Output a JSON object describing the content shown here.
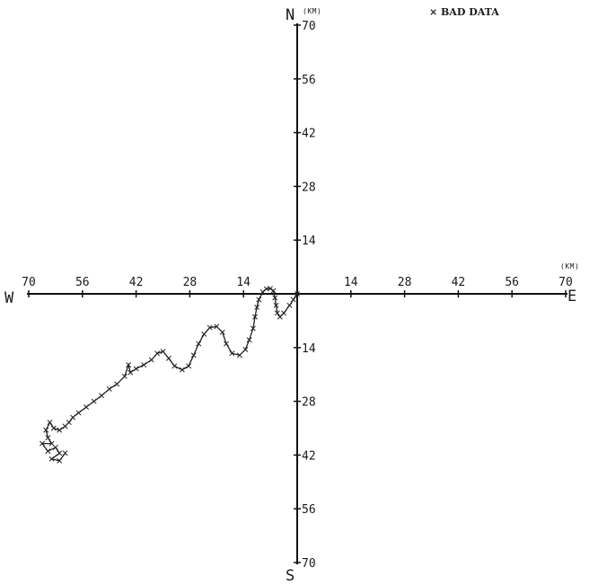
{
  "chart_data": {
    "type": "scatter",
    "title": "",
    "xlabel": "",
    "ylabel": "",
    "xlim": [
      -70,
      70
    ],
    "ylim": [
      -70,
      70
    ],
    "grid": false,
    "axes": {
      "north_label": "N",
      "south_label": "S",
      "east_label": "E",
      "west_label": "W",
      "unit_label_y": "(KM)",
      "unit_label_x": "(KM)",
      "x_ticks": [
        {
          "value": -70,
          "label": "70"
        },
        {
          "value": -56,
          "label": "56"
        },
        {
          "value": -42,
          "label": "42"
        },
        {
          "value": -28,
          "label": "28"
        },
        {
          "value": -14,
          "label": "14"
        },
        {
          "value": 14,
          "label": "14"
        },
        {
          "value": 28,
          "label": "28"
        },
        {
          "value": 42,
          "label": "42"
        },
        {
          "value": 56,
          "label": "56"
        },
        {
          "value": 70,
          "label": "70"
        }
      ],
      "y_ticks": [
        {
          "value": 70,
          "label": "70"
        },
        {
          "value": 56,
          "label": "56"
        },
        {
          "value": 42,
          "label": "42"
        },
        {
          "value": 28,
          "label": "28"
        },
        {
          "value": 14,
          "label": "14"
        },
        {
          "value": -14,
          "label": "14"
        },
        {
          "value": -28,
          "label": "28"
        },
        {
          "value": -42,
          "label": "42"
        },
        {
          "value": -56,
          "label": "56"
        },
        {
          "value": -70,
          "label": "70"
        }
      ]
    },
    "legend": {
      "marker": "×",
      "label": "BAD DATA",
      "position": "top-right"
    },
    "series": [
      {
        "points": [
          [
            0,
            0
          ],
          [
            -1,
            -1.5
          ],
          [
            -2,
            -3
          ],
          [
            -3.5,
            -5
          ],
          [
            -4.5,
            -6
          ],
          [
            -5.2,
            -5
          ],
          [
            -5.5,
            -3
          ],
          [
            -5.8,
            -1
          ],
          [
            -6.2,
            0.8
          ],
          [
            -7,
            1.4
          ],
          [
            -8,
            1.3
          ],
          [
            -9,
            0.5
          ],
          [
            -10,
            -1.5
          ],
          [
            -10.5,
            -3.5
          ],
          [
            -11,
            -6
          ],
          [
            -11.5,
            -9
          ],
          [
            -12.5,
            -12
          ],
          [
            -13.5,
            -14.5
          ],
          [
            -15,
            -16
          ],
          [
            -17,
            -15.5
          ],
          [
            -18.5,
            -13
          ],
          [
            -19.5,
            -10
          ],
          [
            -21,
            -8.5
          ],
          [
            -22.8,
            -8.8
          ],
          [
            -24.3,
            -10.5
          ],
          [
            -25.7,
            -13
          ],
          [
            -27,
            -16
          ],
          [
            -28.3,
            -18.8
          ],
          [
            -30,
            -19.8
          ],
          [
            -32,
            -18.8
          ],
          [
            -33.5,
            -16.8
          ],
          [
            -35,
            -15
          ],
          [
            -36.5,
            -15.5
          ],
          [
            -38,
            -17.2
          ],
          [
            -40,
            -18.5
          ],
          [
            -42,
            -19.5
          ],
          [
            -43.5,
            -20.5
          ],
          [
            -44,
            -18.5
          ],
          [
            -45,
            -21.5
          ],
          [
            -47,
            -23.5
          ],
          [
            -49,
            -24.8
          ],
          [
            -51,
            -26.5
          ],
          [
            -53,
            -28
          ],
          [
            -55,
            -29.5
          ],
          [
            -57,
            -31
          ],
          [
            -58.5,
            -32.2
          ],
          [
            -59.5,
            -33.5
          ],
          [
            -60.5,
            -34.5
          ],
          [
            -62,
            -35.5
          ],
          [
            -63.5,
            -35
          ],
          [
            -64.5,
            -33.5
          ],
          [
            -65.5,
            -35.5
          ],
          [
            -65,
            -37.5
          ],
          [
            -64,
            -39
          ],
          [
            -66.5,
            -39
          ],
          [
            -65,
            -41
          ],
          [
            -63,
            -40
          ],
          [
            -62,
            -41.5
          ],
          [
            -64,
            -43
          ],
          [
            -62,
            -43.5
          ],
          [
            -60.5,
            -41.5
          ]
        ]
      }
    ]
  }
}
